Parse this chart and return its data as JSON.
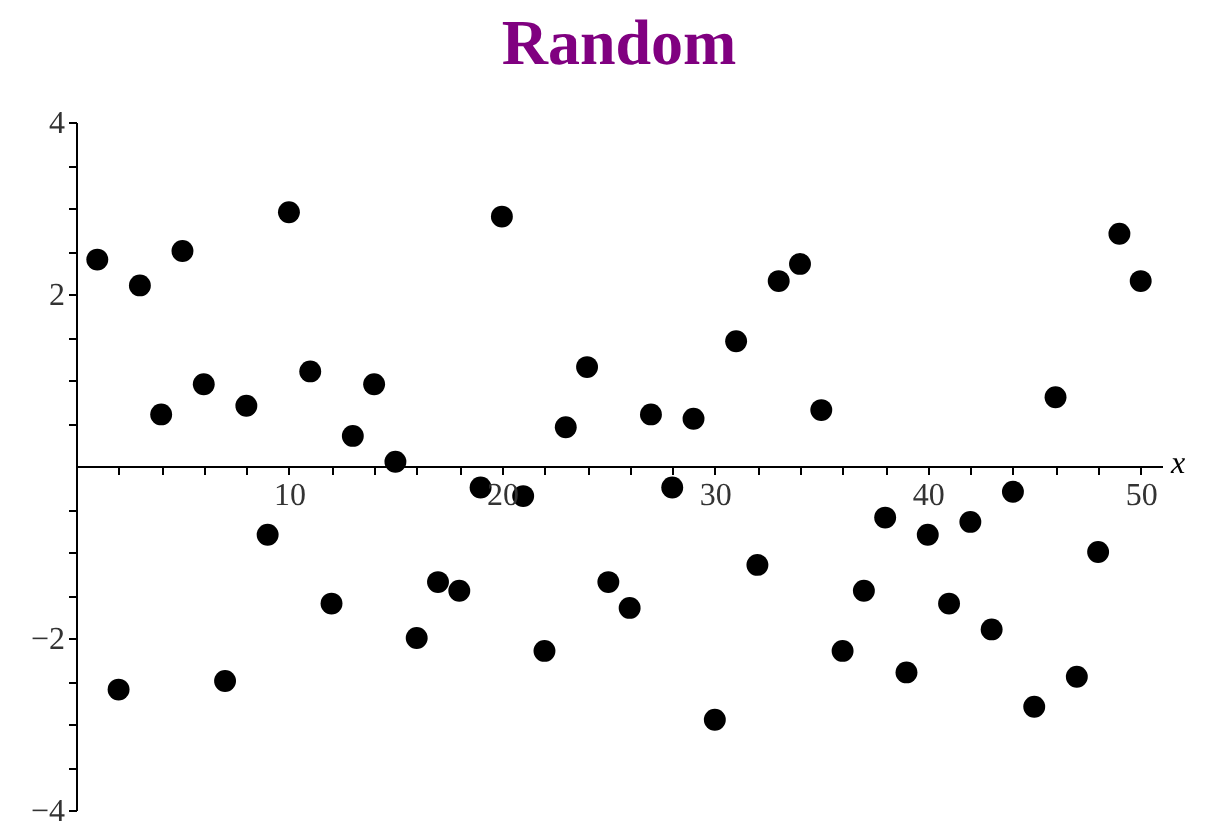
{
  "chart_data": {
    "type": "scatter",
    "title": "Random",
    "xlabel": "x",
    "x": [
      1,
      2,
      3,
      4,
      5,
      6,
      7,
      8,
      9,
      10,
      11,
      12,
      13,
      14,
      15,
      16,
      17,
      18,
      19,
      20,
      21,
      22,
      23,
      24,
      25,
      26,
      27,
      28,
      29,
      30,
      31,
      32,
      33,
      34,
      35,
      36,
      37,
      38,
      39,
      40,
      41,
      42,
      43,
      44,
      45,
      46,
      47,
      48,
      49,
      50
    ],
    "series": [
      {
        "color": "#000000",
        "values": [
          2.4,
          -2.6,
          2.1,
          0.6,
          2.5,
          0.95,
          -2.5,
          0.7,
          -0.8,
          2.95,
          1.1,
          -1.6,
          0.35,
          0.95,
          0.05,
          -2.0,
          -1.35,
          -1.45,
          -0.25,
          2.9,
          -0.35,
          -2.15,
          0.45,
          1.15,
          -1.35,
          -1.65,
          0.6,
          -0.25,
          0.55,
          -2.95,
          1.45,
          -1.15,
          2.15,
          2.35,
          0.65,
          -2.15,
          -1.45,
          -0.6,
          -2.4,
          -0.8,
          -1.6,
          -0.65,
          -1.9,
          -0.3,
          -2.8,
          0.8,
          -2.45,
          -1.0,
          2.7,
          2.15
        ]
      }
    ],
    "xlim": [
      0,
      51
    ],
    "ylim": [
      -4,
      4
    ],
    "xticks": [
      {
        "value": 2,
        "label": null
      },
      {
        "value": 4,
        "label": null
      },
      {
        "value": 6,
        "label": null
      },
      {
        "value": 8,
        "label": null
      },
      10,
      {
        "value": 12,
        "label": null
      },
      {
        "value": 14,
        "label": null
      },
      {
        "value": 16,
        "label": null
      },
      {
        "value": 18,
        "label": null
      },
      20,
      {
        "value": 22,
        "label": null
      },
      {
        "value": 24,
        "label": null
      },
      {
        "value": 26,
        "label": null
      },
      {
        "value": 28,
        "label": null
      },
      30,
      {
        "value": 32,
        "label": null
      },
      {
        "value": 34,
        "label": null
      },
      {
        "value": 36,
        "label": null
      },
      {
        "value": 38,
        "label": null
      },
      40,
      {
        "value": 42,
        "label": null
      },
      {
        "value": 44,
        "label": null
      },
      {
        "value": 46,
        "label": null
      },
      {
        "value": 48,
        "label": null
      },
      50
    ],
    "yticks": [
      {
        "value": -4,
        "label": "−4"
      },
      {
        "value": -3.5,
        "label": null
      },
      {
        "value": -3,
        "label": null
      },
      {
        "value": -2.5,
        "label": null
      },
      {
        "value": -2,
        "label": "−2"
      },
      {
        "value": -1.5,
        "label": null
      },
      {
        "value": -1,
        "label": null
      },
      {
        "value": -0.5,
        "label": null
      },
      {
        "value": 0.5,
        "label": null
      },
      {
        "value": 1,
        "label": null
      },
      {
        "value": 1.5,
        "label": null
      },
      2,
      {
        "value": 2.5,
        "label": null
      },
      {
        "value": 3,
        "label": null
      },
      {
        "value": 3.5,
        "label": null
      },
      4
    ],
    "marker": "circle",
    "grid": false
  }
}
